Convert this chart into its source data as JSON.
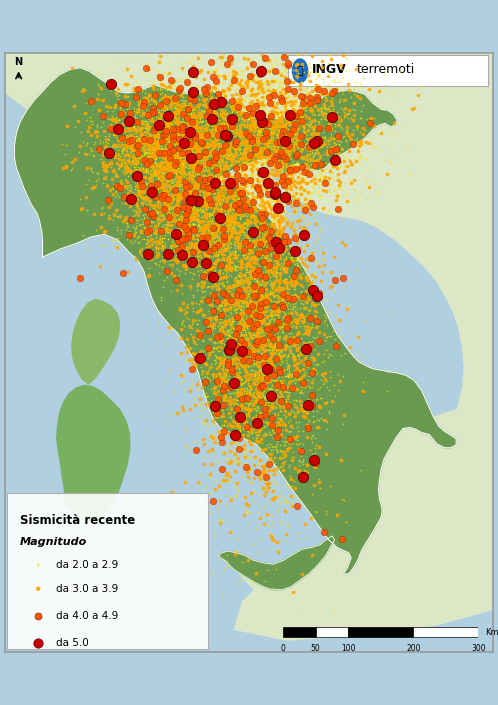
{
  "legend_title": "Sismicità recente",
  "legend_subtitle": "Magnitudo",
  "legend_entries": [
    {
      "label": "da 2.0 a 2.9",
      "color": "#FFE000",
      "size": 1.5
    },
    {
      "label": "da 3.0 a 3.9",
      "color": "#FFA500",
      "size": 7
    },
    {
      "label": "da 4.0 a 4.9",
      "color": "#FF5500",
      "size": 22
    },
    {
      "label": "da 5.0",
      "color": "#CC0000",
      "size": 55
    }
  ],
  "sea_color": "#b0cfe0",
  "land_color": "#d8e8c0",
  "italy_color": "#6a9a50",
  "alps_color": "#7a8060",
  "sardinia_color": "#78b060",
  "xlim": [
    6.5,
    19.5
  ],
  "ylim": [
    36.0,
    47.8
  ],
  "figsize": [
    4.98,
    7.05
  ],
  "dpi": 100,
  "num_earthquakes": {
    "m2": 9000,
    "m3": 3500,
    "m4": 500,
    "m5": 70
  },
  "eq_colors": {
    "m2": "#FFE000",
    "m3": "#FFA500",
    "m4": "#FF5500",
    "m5": "#CC0000"
  },
  "eq_sizes": {
    "m2": 1.5,
    "m3": 7,
    "m4": 22,
    "m5": 55
  }
}
